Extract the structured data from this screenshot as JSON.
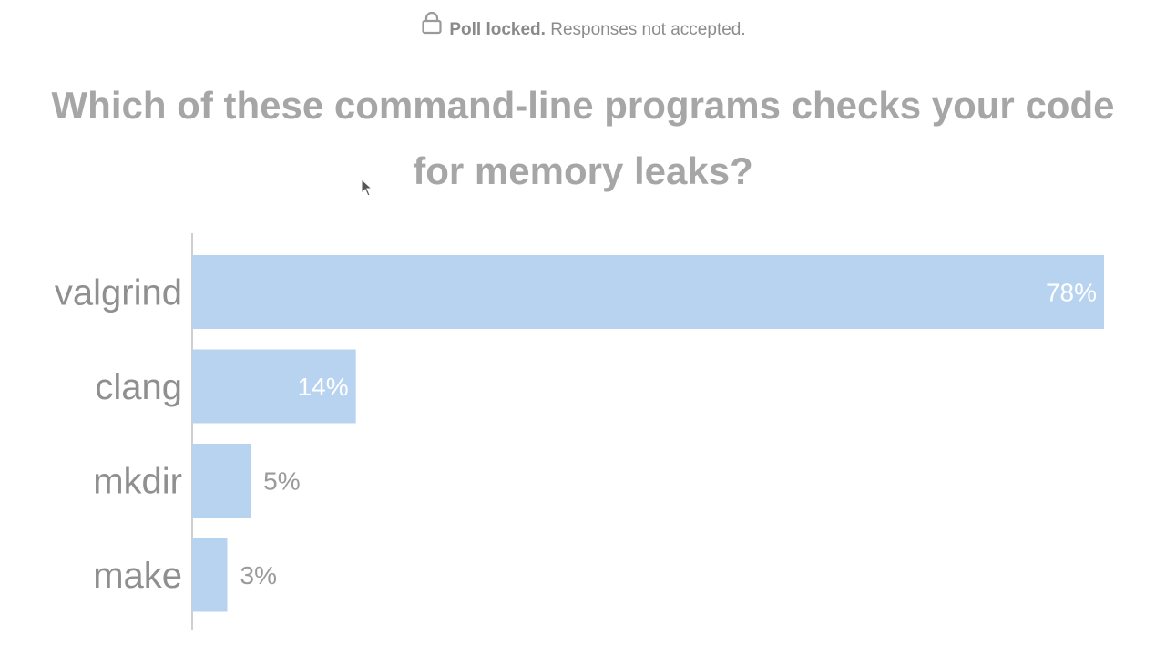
{
  "status": {
    "icon": "lock-icon",
    "locked_label": "Poll locked.",
    "message": "Responses not accepted."
  },
  "question": {
    "line1": "Which of these command-line programs checks your code",
    "line2": "for memory leaks?"
  },
  "colors": {
    "bar": "#b8d3ef",
    "label_inside": "#ffffff",
    "label_outside": "#9a9a9a",
    "axis": "#cfcfcf",
    "category_text": "#8f8f8f"
  },
  "chart_data": {
    "type": "bar",
    "orientation": "horizontal",
    "categories": [
      "valgrind",
      "clang",
      "mkdir",
      "make"
    ],
    "values": [
      78,
      14,
      5,
      3
    ],
    "value_labels": [
      "78%",
      "14%",
      "5%",
      "3%"
    ],
    "unit": "%",
    "xlim": [
      0,
      78
    ],
    "grid": false,
    "legend": "none"
  }
}
